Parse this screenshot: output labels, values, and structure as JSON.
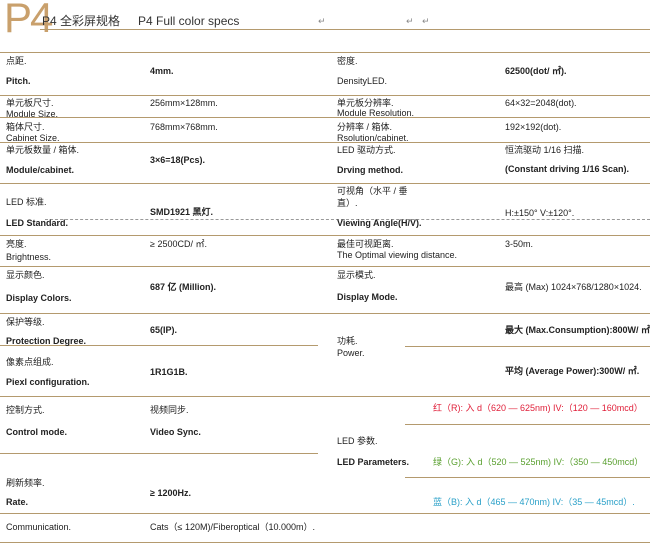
{
  "header": {
    "logo": "P4",
    "title_cn": "P4 全彩屏规格",
    "title_en": "P4 Full color specs",
    "return_mark": "↵"
  },
  "left": [
    {
      "cn": "点距.",
      "en": "Pitch.",
      "value": "4mm."
    },
    {
      "cn": "单元板尺寸.",
      "en": "Module Size.",
      "value": "256mm×128mm."
    },
    {
      "cn": "箱体尺寸.",
      "en": "Cabinet Size.",
      "value": "768mm×768mm."
    },
    {
      "cn": "单元板数量 / 箱体.",
      "en": "Module/cabinet.",
      "value": "3×6=18(Pcs)."
    },
    {
      "cn": "LED 标准.",
      "en": "LED Standard.",
      "value": "SMD1921 黑灯."
    },
    {
      "cn": "亮度.",
      "en": "Brightness.",
      "value": "≥ 2500CD/ ㎡."
    },
    {
      "cn": "显示颜色.",
      "en": "Display Colors.",
      "value": "687 亿 (Million)."
    },
    {
      "cn": "保护等级.",
      "en": "Protection Degree.",
      "value": "65(IP)."
    },
    {
      "cn": "像素点组成.",
      "en": "Piexl configuration.",
      "value": "1R1G1B."
    },
    {
      "cn": "控制方式.",
      "en": "Control mode.",
      "value_cn": "视频同步.",
      "value": "Video Sync."
    },
    {
      "cn": "刷新频率.",
      "en": "Rate.",
      "value": "≥ 1200Hz."
    },
    {
      "en": "Communication.",
      "value": "Cats（≤ 120M)/Fiberoptical（10.000m）."
    }
  ],
  "right": [
    {
      "cn": "密度.",
      "en": "DensityLED.",
      "value": "62500(dot/ ㎡)."
    },
    {
      "cn": "单元板分辨率.",
      "en": "Module Resolution.",
      "value": "64×32=2048(dot)."
    },
    {
      "cn": "分辨率 / 箱体.",
      "en": "Rsolution/cabinet.",
      "value": "192×192(dot)."
    },
    {
      "cn": "LED 驱动方式.",
      "en": "Drving method.",
      "value": "恒流驱动 1/16 扫描.",
      "value2": "(Constant driving 1/16 Scan)."
    },
    {
      "cn": "可视角（水平 / 垂",
      "cn2": "直）.",
      "en": "Viewing Angle(H/V).",
      "value": "H:±150° V:±120°."
    },
    {
      "cn": "最佳可视距离.",
      "en": "The Optimal viewing distance.",
      "value": "3-50m."
    },
    {
      "cn": "显示模式.",
      "en": "Display Mode.",
      "value": "最高 (Max) 1024×768/1280×1024."
    },
    {
      "cn": "功耗.",
      "en": "Power.",
      "value": "最大 (Max.Consumption):800W/ ㎡.",
      "value2": "平均 (Average Power):300W/ ㎡."
    },
    {
      "cn": "LED 参数.",
      "en": "LED Parameters.",
      "red": "红（R): 入 d（620 — 625nm) IV:（120 — 160mcd）",
      "green": "绿（G): 入 d（520 — 525nm) IV:（350 — 450mcd）",
      "blue": "蓝（B): 入 d（465 — 470nm) IV:（35 — 45mcd）."
    }
  ],
  "colors": {
    "accent": "#c9a06c",
    "rule": "#b49a6e",
    "red": "#e0203a",
    "green": "#5aa030",
    "blue": "#2aa0c8"
  }
}
